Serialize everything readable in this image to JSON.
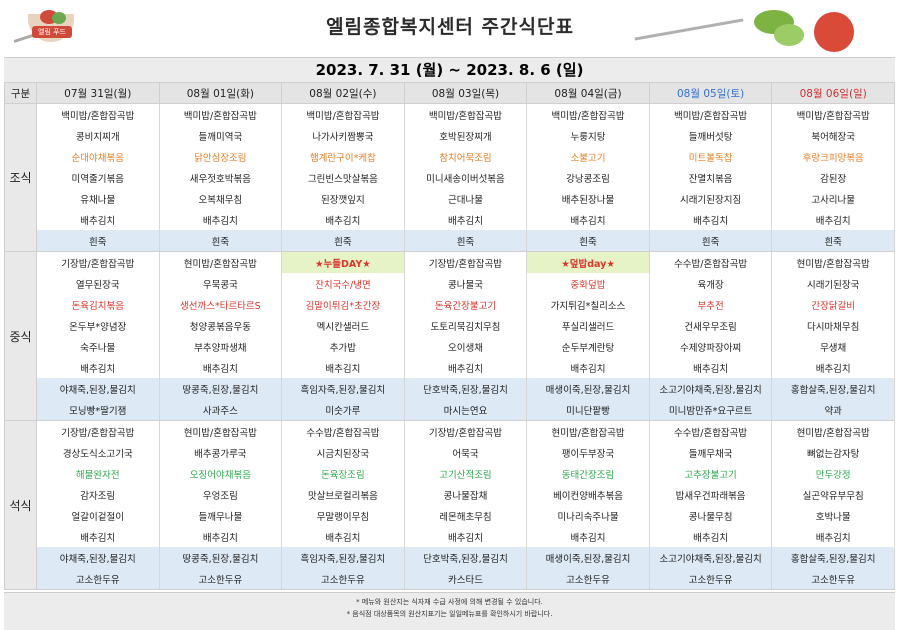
{
  "title": "엘림종합복지센터 주간식단표",
  "logo_text": "엘림 푸드",
  "date_range": "2023. 7. 31 (월) ~ 2023. 8. 6 (일)",
  "corner_label": "구분",
  "days": [
    "07월 31일(월)",
    "08월 01일(화)",
    "08월 02일(수)",
    "08월 03일(목)",
    "08월 04일(금)",
    "08월 05일(토)",
    "08월 06일(일)"
  ],
  "sections": [
    {
      "label": "조식",
      "rows": [
        [
          {
            "t": "백미밥/혼합잡곡밥"
          },
          {
            "t": "백미밥/혼합잡곡밥"
          },
          {
            "t": "백미밥/혼합잡곡밥"
          },
          {
            "t": "백미밥/혼합잡곡밥"
          },
          {
            "t": "백미밥/혼합잡곡밥"
          },
          {
            "t": "백미밥/혼합잡곡밥"
          },
          {
            "t": "백미밥/혼합잡곡밥"
          }
        ],
        [
          {
            "t": "콩비지찌개"
          },
          {
            "t": "들깨미역국"
          },
          {
            "t": "나가사키짬뽕국"
          },
          {
            "t": "호박된장찌개"
          },
          {
            "t": "누룽지탕"
          },
          {
            "t": "들깨버섯탕"
          },
          {
            "t": "북어해장국"
          }
        ],
        [
          {
            "t": "순대야채볶음",
            "c": "orange"
          },
          {
            "t": "닭안심장조림",
            "c": "orange"
          },
          {
            "t": "햄계란구이*케찹",
            "c": "orange"
          },
          {
            "t": "참치어묵조림",
            "c": "orange"
          },
          {
            "t": "소불고기",
            "c": "orange"
          },
          {
            "t": "미트볼독찹",
            "c": "orange"
          },
          {
            "t": "후랑크피망볶음",
            "c": "orange"
          }
        ],
        [
          {
            "t": "미역줄기볶음"
          },
          {
            "t": "새우젓호박볶음"
          },
          {
            "t": "그린빈스맛살볶음"
          },
          {
            "t": "미니새송이버섯볶음"
          },
          {
            "t": "강낭콩조림"
          },
          {
            "t": "잔멸치볶음"
          },
          {
            "t": "감된장"
          }
        ],
        [
          {
            "t": "유채나물"
          },
          {
            "t": "오복채무침"
          },
          {
            "t": "된장깻잎지"
          },
          {
            "t": "근대나물"
          },
          {
            "t": "배추된장나물"
          },
          {
            "t": "시래기된장지짐"
          },
          {
            "t": "고사리나물"
          }
        ],
        [
          {
            "t": "배추김치"
          },
          {
            "t": "배추김치"
          },
          {
            "t": "배추김치"
          },
          {
            "t": "배추김치"
          },
          {
            "t": "배추김치"
          },
          {
            "t": "배추김치"
          },
          {
            "t": "배추김치"
          }
        ]
      ],
      "snack": [
        [
          {
            "t": "흰죽"
          },
          {
            "t": "흰죽"
          },
          {
            "t": "흰죽"
          },
          {
            "t": "흰죽"
          },
          {
            "t": "흰죽"
          },
          {
            "t": "흰죽"
          },
          {
            "t": "흰죽"
          }
        ]
      ]
    },
    {
      "label": "중식",
      "rows": [
        [
          {
            "t": "기장밥/혼합잡곡밥"
          },
          {
            "t": "현미밥/혼합잡곡밥"
          },
          {
            "t": "★누들DAY★",
            "c": "event"
          },
          {
            "t": "기장밥/혼합잡곡밥"
          },
          {
            "t": "★덮밥day★",
            "c": "event"
          },
          {
            "t": "수수밥/혼합잡곡밥"
          },
          {
            "t": "현미밥/혼합잡곡밥"
          }
        ],
        [
          {
            "t": "열무된장국"
          },
          {
            "t": "우묵콩국"
          },
          {
            "t": "잔치국수/냉면",
            "c": "red"
          },
          {
            "t": "콩나물국"
          },
          {
            "t": "중화덮밥",
            "c": "red"
          },
          {
            "t": "육개장"
          },
          {
            "t": "시래기된장국"
          }
        ],
        [
          {
            "t": "돈육김치볶음",
            "c": "red"
          },
          {
            "t": "생선까스*타르타르S",
            "c": "red"
          },
          {
            "t": "김말이튀김*초간장",
            "c": "red"
          },
          {
            "t": "돈육간장불고기",
            "c": "red"
          },
          {
            "t": "가지튀김*칠리소스"
          },
          {
            "t": "부추전",
            "c": "red"
          },
          {
            "t": "간장닭갈비",
            "c": "red"
          }
        ],
        [
          {
            "t": "온두부*양념장"
          },
          {
            "t": "청양콩볶음우동"
          },
          {
            "t": "멕시칸샐러드"
          },
          {
            "t": "도토리묵김치무침"
          },
          {
            "t": "푸실리샐러드"
          },
          {
            "t": "건새우무조림"
          },
          {
            "t": "다시마채무침"
          }
        ],
        [
          {
            "t": "숙주나물"
          },
          {
            "t": "부추양파생채"
          },
          {
            "t": "추가밥"
          },
          {
            "t": "오이생채"
          },
          {
            "t": "순두부계란탕"
          },
          {
            "t": "수제양파장아찌"
          },
          {
            "t": "무생채"
          }
        ],
        [
          {
            "t": "배추김치"
          },
          {
            "t": "배추김치"
          },
          {
            "t": "배추김치"
          },
          {
            "t": "배추김치"
          },
          {
            "t": "배추김치"
          },
          {
            "t": "배추김치"
          },
          {
            "t": "배추김치"
          }
        ]
      ],
      "snack": [
        [
          {
            "t": "야채죽,된장,물김치"
          },
          {
            "t": "땅콩죽,된장,물김치"
          },
          {
            "t": "흑임자죽,된장,물김치"
          },
          {
            "t": "단호박죽,된장,물김치"
          },
          {
            "t": "매생이죽,된장,물김치"
          },
          {
            "t": "소고기야채죽,된장,물김치"
          },
          {
            "t": "홍합살죽,된장,물김치"
          }
        ],
        [
          {
            "t": "모닝빵*딸기잼"
          },
          {
            "t": "사과주스"
          },
          {
            "t": "미숫가루"
          },
          {
            "t": "마시는연요"
          },
          {
            "t": "미니단팥빵"
          },
          {
            "t": "미니밤만쥬*요구르트"
          },
          {
            "t": "약과"
          }
        ]
      ]
    },
    {
      "label": "석식",
      "rows": [
        [
          {
            "t": "기장밥/혼합잡곡밥"
          },
          {
            "t": "현미밥/혼합잡곡밥"
          },
          {
            "t": "수수밥/혼합잡곡밥"
          },
          {
            "t": "기장밥/혼합잡곡밥"
          },
          {
            "t": "현미밥/혼합잡곡밥"
          },
          {
            "t": "수수밥/혼합잡곡밥"
          },
          {
            "t": "현미밥/혼합잡곡밥"
          }
        ],
        [
          {
            "t": "경상도식소고기국"
          },
          {
            "t": "배추콩가루국"
          },
          {
            "t": "시금치된장국"
          },
          {
            "t": "어묵국"
          },
          {
            "t": "팽이두부장국"
          },
          {
            "t": "들깨무채국"
          },
          {
            "t": "뼈없는감자탕"
          }
        ],
        [
          {
            "t": "해물완자전",
            "c": "green"
          },
          {
            "t": "오징어야채볶음",
            "c": "green"
          },
          {
            "t": "돈육장조림",
            "c": "green"
          },
          {
            "t": "고기산적조림",
            "c": "green"
          },
          {
            "t": "동태간장조림",
            "c": "green"
          },
          {
            "t": "고추장불고기",
            "c": "green"
          },
          {
            "t": "만두강정",
            "c": "green"
          }
        ],
        [
          {
            "t": "감자조림"
          },
          {
            "t": "우엉조림"
          },
          {
            "t": "맛살브로컬리볶음"
          },
          {
            "t": "콩나물잡채"
          },
          {
            "t": "베이컨양배추볶음"
          },
          {
            "t": "밥새우건파래볶음"
          },
          {
            "t": "실곤약유부무침"
          }
        ],
        [
          {
            "t": "얼갈이겉절이"
          },
          {
            "t": "들깨무나물"
          },
          {
            "t": "무말랭이무침"
          },
          {
            "t": "레몬해초무침"
          },
          {
            "t": "미나리숙주나물"
          },
          {
            "t": "콩나물무침"
          },
          {
            "t": "호박나물"
          }
        ],
        [
          {
            "t": "배추김치"
          },
          {
            "t": "배추김치"
          },
          {
            "t": "배추김치"
          },
          {
            "t": "배추김치"
          },
          {
            "t": "배추김치"
          },
          {
            "t": "배추김치"
          },
          {
            "t": "배추김치"
          }
        ]
      ],
      "snack": [
        [
          {
            "t": "야채죽,된장,물김치"
          },
          {
            "t": "땅콩죽,된장,물김치"
          },
          {
            "t": "흑임자죽,된장,물김치"
          },
          {
            "t": "단호박죽,된장,물김치"
          },
          {
            "t": "매생이죽,된장,물김치"
          },
          {
            "t": "소고기야채죽,된장,물김치"
          },
          {
            "t": "홍합살죽,된장,물김치"
          }
        ],
        [
          {
            "t": "고소한두유"
          },
          {
            "t": "고소한두유"
          },
          {
            "t": "고소한두유"
          },
          {
            "t": "카스타드"
          },
          {
            "t": "고소한두유"
          },
          {
            "t": "고소한두유"
          },
          {
            "t": "고소한두유"
          }
        ]
      ]
    }
  ],
  "notes": [
    "* 메뉴와 원산지는 식자재 수급 사정에 의해 변경될 수 있습니다.",
    "* 음식점 대상품목의 원산지표기는 일일메뉴표를 확인하시기 바랍니다."
  ],
  "colors": {
    "sat": "#2f6fd1",
    "sun": "#d02f2f",
    "accent_red": "#d9352b",
    "accent_orange": "#e0802a",
    "accent_green": "#2fa84f",
    "snack_bg": "#dde9f5",
    "event_bg": "#e6f3c7"
  }
}
